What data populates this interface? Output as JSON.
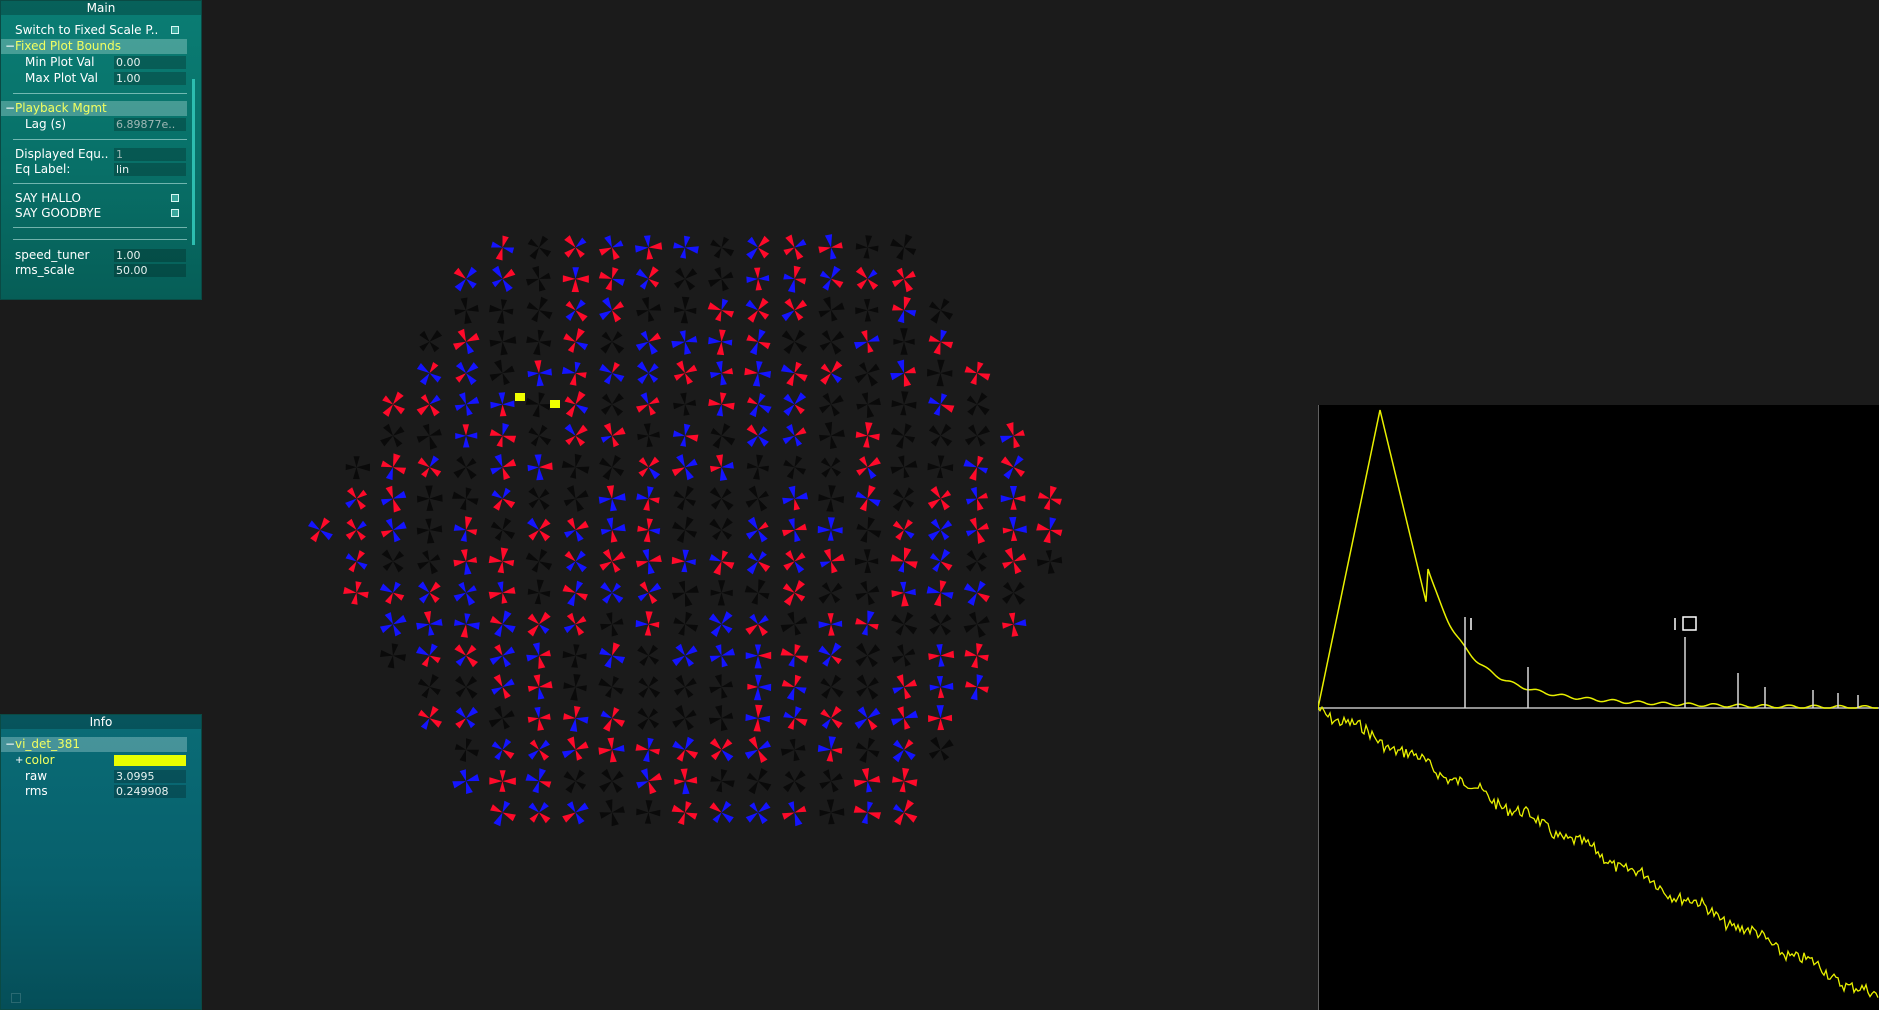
{
  "main_panel": {
    "title": "Main",
    "switch_fixed_scale_label": "Switch to Fixed Scale P..",
    "fixed_plot_bounds_folder": "Fixed Plot Bounds",
    "min_plot_val_label": "Min Plot Val",
    "min_plot_val": "0.00",
    "max_plot_val_label": "Max Plot Val",
    "max_plot_val": "1.00",
    "playback_folder": "Playback Mgmt",
    "lag_label": "Lag (s)",
    "lag_value": "6.89877e..",
    "displayed_equ_label": "Displayed Equ..",
    "displayed_equ_value": "1",
    "eq_label_label": "Eq Label:",
    "eq_label_value": "lin",
    "say_hallo_label": "SAY HALLO",
    "say_goodbye_label": "SAY GOODBYE",
    "speed_tuner_label": "speed_tuner",
    "speed_tuner_value": "1.00",
    "rms_scale_label": "rms_scale",
    "rms_scale_value": "50.00"
  },
  "info_panel": {
    "title": "Info",
    "detector_folder": "vi_det_381",
    "color_label": "color",
    "color_value": "#e8ff00",
    "raw_label": "raw",
    "raw_value": "3.0995",
    "rms_label": "rms",
    "rms_value": "0.249908"
  },
  "colors": {
    "positive": "#ff0a2a",
    "negative": "#1414ff",
    "inactive": "#0a0a0a",
    "trace": "#e8f000",
    "highlight": "#f0ff00"
  }
}
